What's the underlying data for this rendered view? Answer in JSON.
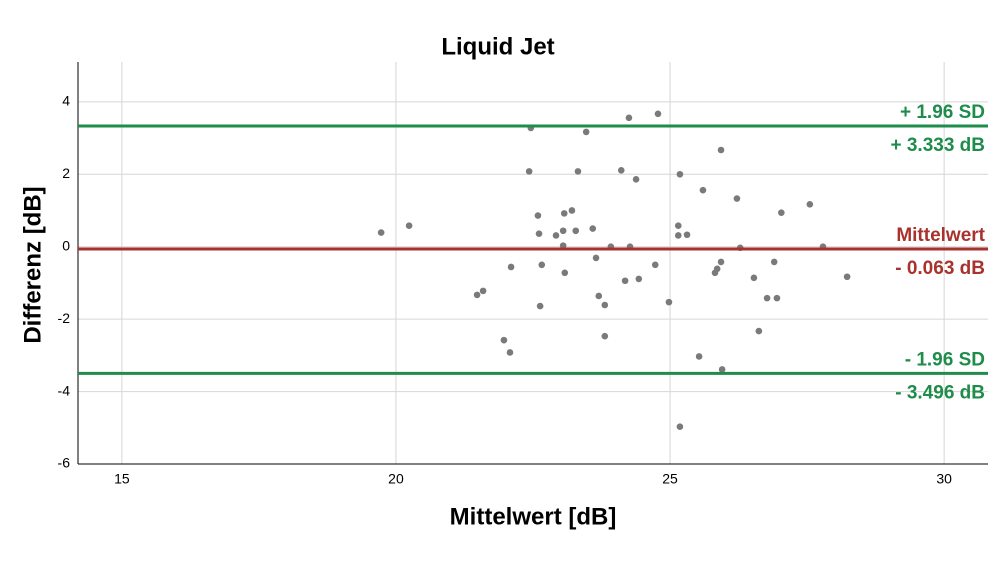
{
  "chart_data": {
    "type": "scatter",
    "title": "Liquid Jet",
    "x_label": "Mittelwert [dB]",
    "y_label": "Differenz [dB]",
    "xlim": [
      14.2,
      30.8
    ],
    "ylim": [
      -6,
      5.1
    ],
    "xticks": [
      15,
      20,
      25,
      30
    ],
    "yticks": [
      4,
      2,
      0,
      -2,
      -4,
      -6
    ],
    "grid": true,
    "color": "#7a7a7a",
    "x": [
      19.73,
      20.24,
      21.48,
      21.59,
      21.97,
      22.08,
      22.1,
      22.46,
      22.43,
      22.59,
      22.61,
      22.66,
      22.63,
      22.92,
      23.07,
      23.05,
      23.05,
      23.08,
      23.21,
      23.28,
      23.32,
      23.47,
      23.59,
      23.65,
      23.7,
      23.81,
      23.81,
      23.92,
      24.11,
      24.18,
      24.25,
      24.27,
      24.38,
      24.43,
      24.73,
      24.78,
      24.98,
      25.15,
      25.15,
      25.18,
      25.18,
      25.31,
      25.53,
      25.6,
      25.82,
      25.86,
      25.93,
      25.93,
      25.95,
      26.22,
      26.28,
      26.53,
      26.62,
      26.77,
      26.9,
      26.95,
      27.03,
      27.55,
      27.79,
      28.23
    ],
    "values": [
      0.39,
      0.58,
      -1.33,
      -1.22,
      -2.58,
      -2.92,
      -0.56,
      3.28,
      2.08,
      0.86,
      0.36,
      -0.5,
      -1.64,
      0.31,
      0.92,
      0.44,
      0.03,
      -0.72,
      1.0,
      0.44,
      2.08,
      3.17,
      0.5,
      -0.31,
      -1.36,
      -1.61,
      -2.47,
      0,
      2.11,
      -0.94,
      3.56,
      0,
      1.86,
      -0.89,
      -0.5,
      3.67,
      -1.53,
      0.58,
      0.31,
      2.0,
      -4.97,
      0.33,
      -3.03,
      1.56,
      -0.72,
      -0.61,
      2.67,
      -0.42,
      -3.39,
      1.33,
      -0.03,
      -0.86,
      -2.33,
      -1.42,
      -0.42,
      -1.42,
      0.94,
      1.17,
      0,
      -0.83
    ],
    "reference_lines": [
      {
        "value": 3.333,
        "color": "#1e8c4a",
        "labels": [
          "+ 1.96 SD",
          "+ 3.333 dB"
        ]
      },
      {
        "value": -0.063,
        "color": "#a8322d",
        "labels": [
          "Mittelwert",
          "- 0.063 dB"
        ]
      },
      {
        "value": -3.496,
        "color": "#1e8c4a",
        "labels": [
          "- 1.96 SD",
          "- 3.496 dB"
        ]
      }
    ]
  }
}
